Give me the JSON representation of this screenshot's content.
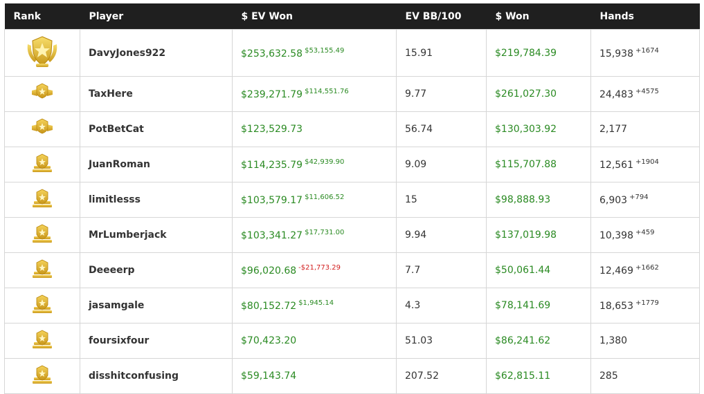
{
  "table": {
    "headers": [
      "Rank",
      "Player",
      "$ EV Won",
      "EV BB/100",
      "$ Won",
      "Hands"
    ],
    "rows": [
      {
        "player": "DavyJones922",
        "ev_won": "$253,632.58",
        "ev_change": "$53,155.49",
        "bb100": "15.91",
        "won": "$219,784.39",
        "hands": "15,938",
        "hands_change": "+1674"
      },
      {
        "player": "TaxHere",
        "ev_won": "$239,271.79",
        "ev_change": "$114,551.76",
        "bb100": "9.77",
        "won": "$261,027.30",
        "hands": "24,483",
        "hands_change": "+4575"
      },
      {
        "player": "PotBetCat",
        "ev_won": "$123,529.73",
        "ev_change": null,
        "bb100": "56.74",
        "won": "$130,303.92",
        "hands": "2,177",
        "hands_change": null
      },
      {
        "player": "JuanRoman",
        "ev_won": "$114,235.79",
        "ev_change": "$42,939.90",
        "bb100": "9.09",
        "won": "$115,707.88",
        "hands": "12,561",
        "hands_change": "+1904"
      },
      {
        "player": "limitlesss",
        "ev_won": "$103,579.17",
        "ev_change": "$11,606.52",
        "bb100": "15",
        "won": "$98,888.93",
        "hands": "6,903",
        "hands_change": "+794"
      },
      {
        "player": "MrLumberjack",
        "ev_won": "$103,341.27",
        "ev_change": "$17,731.00",
        "bb100": "9.94",
        "won": "$137,019.98",
        "hands": "10,398",
        "hands_change": "+459"
      },
      {
        "player": "Deeeerp",
        "ev_won": "$96,020.68",
        "ev_change": "-$21,773.29",
        "bb100": "7.7",
        "won": "$50,061.44",
        "hands": "12,469",
        "hands_change": "+1662"
      },
      {
        "player": "jasamgale",
        "ev_won": "$80,152.72",
        "ev_change": "$1,945.14",
        "bb100": "4.3",
        "won": "$78,141.69",
        "hands": "18,653",
        "hands_change": "+1779"
      },
      {
        "player": "foursixfour",
        "ev_won": "$70,423.20",
        "ev_change": null,
        "bb100": "51.03",
        "won": "$86,241.62",
        "hands": "1,380",
        "hands_change": null
      },
      {
        "player": "disshitconfusing",
        "ev_won": "$59,143.74",
        "ev_change": null,
        "bb100": "207.52",
        "won": "$62,815.11",
        "hands": "285",
        "hands_change": null
      }
    ]
  }
}
